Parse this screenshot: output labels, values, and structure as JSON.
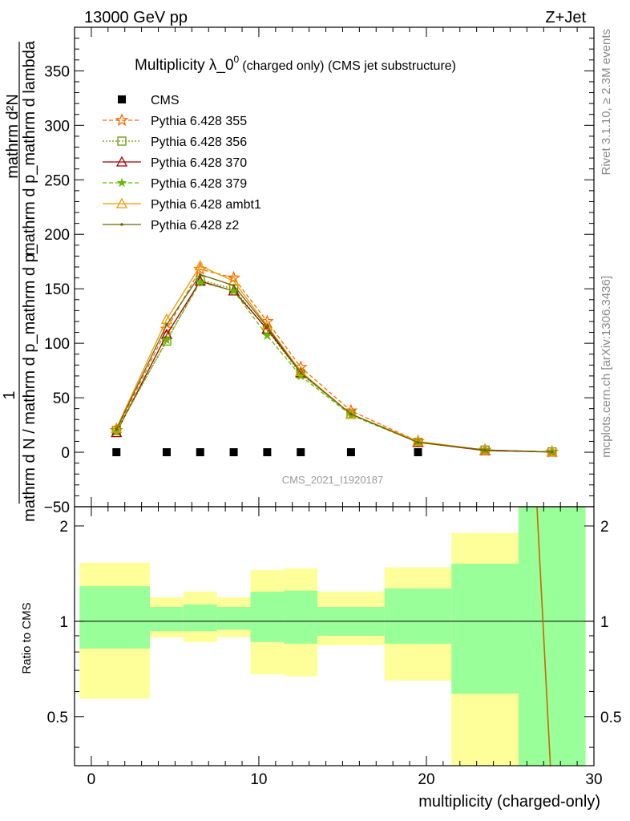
{
  "header": {
    "left": "13000 GeV pp",
    "right": "Z+Jet"
  },
  "side_labels": {
    "rivet": "Rivet 3.1.10, ≥ 2.3M events",
    "mcplots": "mcplots.cern.ch [arXiv:1306.3436]"
  },
  "chart_data": {
    "type": "line",
    "title_main": "Multiplicity λ_0",
    "title_sup": "0",
    "title_small": "(charged only) (CMS jet substructure)",
    "watermark": "CMS_2021_I1920187",
    "ylabel_numerator": "1",
    "ylabel_denominator_1": "mathrm d N / mathrm d p_mathrm d p_",
    "ylabel_denominator_2": "mathrm d p_mathrm d lambda",
    "ylabel_top": "mathrm d²N",
    "ratio_ylabel": "Ratio to CMS",
    "xlabel": "multiplicity (charged-only)",
    "xlim": [
      -1,
      30
    ],
    "ylim": [
      -50,
      390
    ],
    "ratio_ylim": [
      0.35,
      2.3
    ],
    "main_yticks": [
      {
        "v": -50,
        "label": "−50"
      },
      {
        "v": 0,
        "label": "0"
      },
      {
        "v": 50,
        "label": "50"
      },
      {
        "v": 100,
        "label": "100"
      },
      {
        "v": 150,
        "label": "150"
      },
      {
        "v": 200,
        "label": "200"
      },
      {
        "v": 250,
        "label": "250"
      },
      {
        "v": 300,
        "label": "300"
      },
      {
        "v": 350,
        "label": "350"
      }
    ],
    "ratio_yticks": [
      {
        "v": 0.5,
        "label": "0.5"
      },
      {
        "v": 1,
        "label": "1"
      },
      {
        "v": 2,
        "label": "2"
      }
    ],
    "xticks": [
      {
        "v": 0,
        "label": "0"
      },
      {
        "v": 10,
        "label": "10"
      },
      {
        "v": 20,
        "label": "20"
      },
      {
        "v": 30,
        "label": "30"
      }
    ],
    "cms": {
      "name": "CMS",
      "x": [
        1.5,
        4.5,
        6.5,
        8.5,
        10.5,
        12.5,
        15.5,
        19.5
      ],
      "y": [
        0,
        0,
        0,
        0,
        0,
        0,
        0,
        0
      ]
    },
    "x": [
      1.5,
      4.5,
      6.5,
      8.5,
      10.5,
      12.5,
      15.5,
      19.5,
      23.5,
      27.5
    ],
    "series": [
      {
        "name": "Pythia 6.428 355",
        "color": "#ff6600",
        "dash": "5,3",
        "marker": "star-open",
        "values": [
          20,
          113,
          168,
          160,
          120,
          78,
          38,
          10,
          2,
          0.3
        ]
      },
      {
        "name": "Pythia 6.428 356",
        "color": "#669900",
        "dash": "2,2",
        "marker": "square-open",
        "values": [
          20,
          102,
          158,
          150,
          112,
          72,
          35,
          9,
          2,
          0.3
        ]
      },
      {
        "name": "Pythia 6.428 370",
        "color": "#990000",
        "dash": "",
        "marker": "triangle-open",
        "values": [
          18,
          108,
          157,
          148,
          113,
          73,
          35,
          9,
          1.5,
          0.2
        ]
      },
      {
        "name": "Pythia 6.428 379",
        "color": "#66bb00",
        "dash": "5,3",
        "marker": "star",
        "values": [
          19,
          103,
          156,
          148,
          107,
          70,
          34,
          9,
          2,
          0.3
        ]
      },
      {
        "name": "Pythia 6.428 ambt1",
        "color": "#ee9900",
        "dash": "",
        "marker": "triangle-open",
        "values": [
          22,
          122,
          171,
          157,
          116,
          74,
          35,
          10,
          2,
          0.3
        ]
      },
      {
        "name": "Pythia 6.428 z2",
        "color": "#666600",
        "dash": "",
        "marker": "dot",
        "values": [
          21,
          117,
          163,
          153,
          115,
          73,
          35,
          9,
          2,
          0.3
        ]
      }
    ],
    "ratio_bands": [
      {
        "x0": -0.7,
        "x1": 3.5,
        "y_lo": 0.57,
        "y_hi": 1.53,
        "g_lo": 0.82,
        "g_hi": 1.29
      },
      {
        "x0": 3.5,
        "x1": 5.5,
        "y_lo": 0.89,
        "y_hi": 1.19,
        "g_lo": 0.93,
        "g_hi": 1.11
      },
      {
        "x0": 5.5,
        "x1": 7.5,
        "y_lo": 0.86,
        "y_hi": 1.24,
        "g_lo": 0.93,
        "g_hi": 1.13
      },
      {
        "x0": 7.5,
        "x1": 9.5,
        "y_lo": 0.89,
        "y_hi": 1.19,
        "g_lo": 0.94,
        "g_hi": 1.11
      },
      {
        "x0": 9.5,
        "x1": 11.5,
        "y_lo": 0.68,
        "y_hi": 1.45,
        "g_lo": 0.86,
        "g_hi": 1.24
      },
      {
        "x0": 11.5,
        "x1": 13.5,
        "y_lo": 0.67,
        "y_hi": 1.47,
        "g_lo": 0.85,
        "g_hi": 1.25
      },
      {
        "x0": 13.5,
        "x1": 17.5,
        "y_lo": 0.84,
        "y_hi": 1.24,
        "g_lo": 0.9,
        "g_hi": 1.11
      },
      {
        "x0": 17.5,
        "x1": 21.5,
        "y_lo": 0.65,
        "y_hi": 1.48,
        "g_lo": 0.85,
        "g_hi": 1.27
      },
      {
        "x0": 21.5,
        "x1": 25.5,
        "y_lo": 0.35,
        "y_hi": 1.9,
        "g_lo": 0.59,
        "g_hi": 1.52
      },
      {
        "x0": 25.5,
        "x1": 29.5,
        "y_lo": 0.35,
        "y_hi": 2.3,
        "g_lo": 0.35,
        "g_hi": 2.3
      }
    ],
    "ratio_line": {
      "x": [
        26.6,
        27.4
      ],
      "y": [
        2.3,
        0.35
      ],
      "color": "#cc6600"
    },
    "grid": false,
    "legend_position": "top-left"
  }
}
